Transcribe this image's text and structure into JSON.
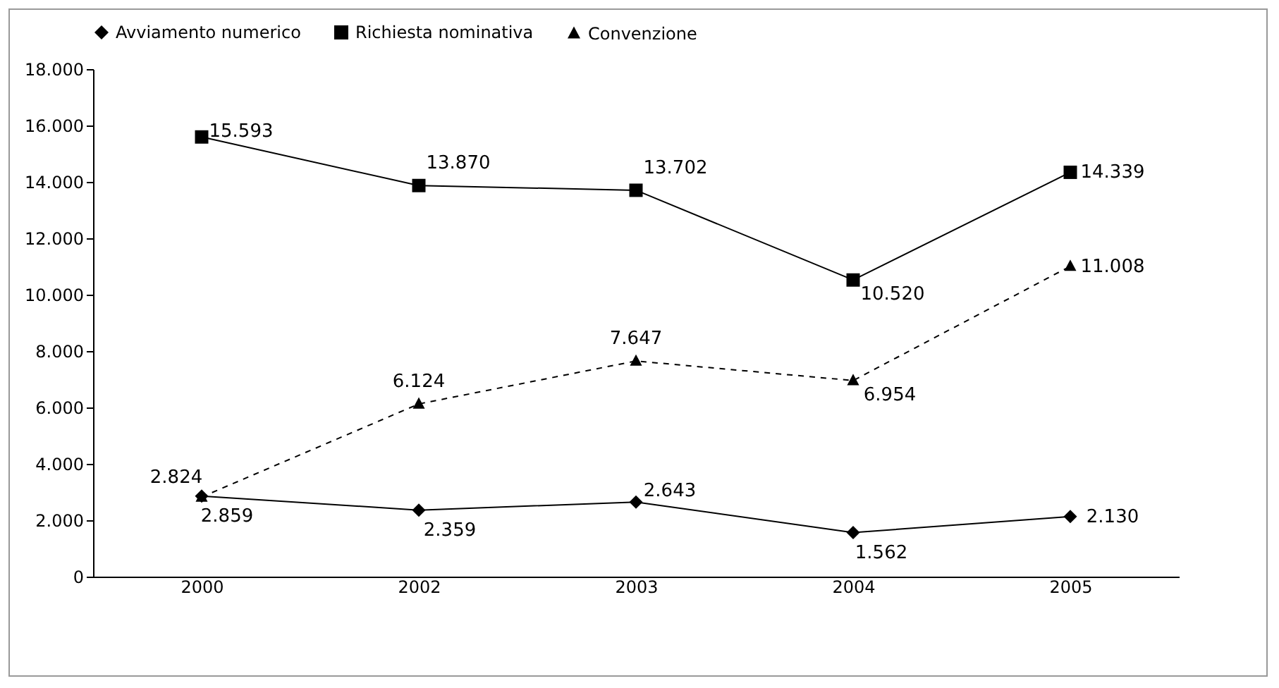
{
  "chart_data": {
    "type": "line",
    "categories": [
      "2000",
      "2002",
      "2003",
      "2004",
      "2005"
    ],
    "ylim": [
      0,
      18000
    ],
    "yticks": [
      0,
      {
        "value": 2000,
        "label": "2.000"
      },
      {
        "value": 4000,
        "label": "4.000"
      },
      {
        "value": 6000,
        "label": "6.000"
      },
      {
        "value": 8000,
        "label": "8.000"
      },
      {
        "value": 10000,
        "label": "10.000"
      },
      {
        "value": 12000,
        "label": "12.000"
      },
      {
        "value": 14000,
        "label": "14.000"
      },
      {
        "value": 16000,
        "label": "16.000"
      },
      {
        "value": 18000,
        "label": "18.000"
      }
    ],
    "grid": false,
    "legend": "top",
    "series": [
      {
        "name": "Avviamento numerico",
        "color": "#000000",
        "marker": "diamond",
        "line_style": "solid",
        "values": [
          2859,
          2359,
          2643,
          1562,
          2130
        ],
        "value_labels": [
          "2.859",
          "2.359",
          "2.643",
          "1.562",
          "2.130"
        ]
      },
      {
        "name": "Richiesta nominativa",
        "color": "#000000",
        "marker": "square",
        "line_style": "solid",
        "values": [
          15593,
          13870,
          13702,
          10520,
          14339
        ],
        "value_labels": [
          "15.593",
          "13.870",
          "13.702",
          "10.520",
          "14.339"
        ]
      },
      {
        "name": "Convenzione",
        "color": "#000000",
        "marker": "triangle",
        "line_style": "dashed",
        "values": [
          2824,
          6124,
          7647,
          6954,
          11008
        ],
        "value_labels": [
          "2.824",
          "6.124",
          "7.647",
          "6.954",
          "11.008"
        ]
      }
    ]
  }
}
